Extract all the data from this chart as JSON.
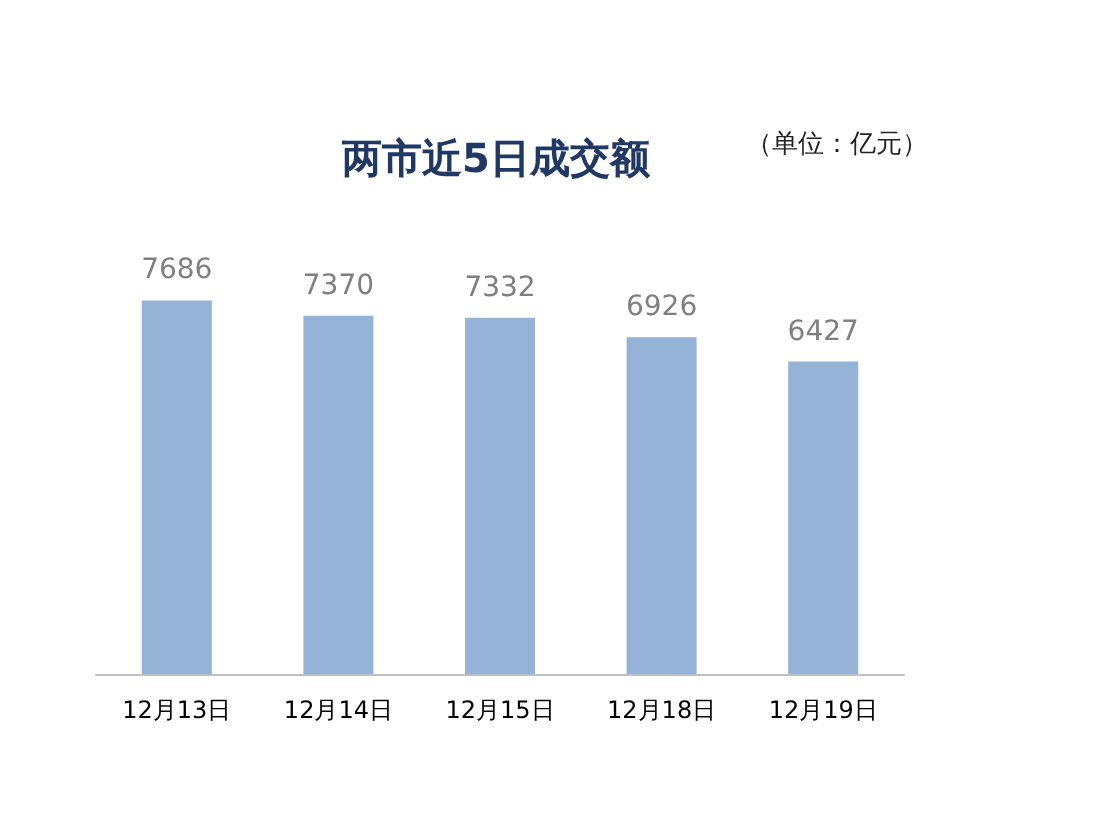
{
  "chart_data": {
    "type": "bar",
    "title": "两市近5日成交额",
    "annotations": [
      "（单位：亿元）"
    ],
    "categories": [
      "12月13日",
      "12月14日",
      "12月15日",
      "12月18日",
      "12月19日"
    ],
    "values": [
      7686,
      7370,
      7332,
      6926,
      6427
    ],
    "color": "#95b3d7",
    "data_labels": true
  }
}
